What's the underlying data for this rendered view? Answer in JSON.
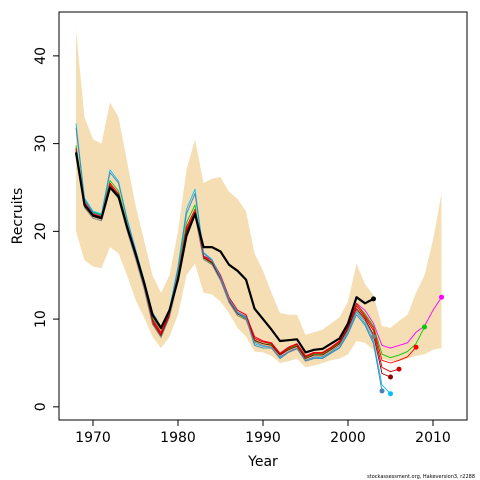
{
  "chart_data": {
    "type": "line",
    "xlabel": "Year",
    "ylabel": "Recruits",
    "xlim": [
      1966,
      2014
    ],
    "ylim": [
      -1.5,
      45
    ],
    "xticks": [
      1970,
      1980,
      1990,
      2000,
      2010
    ],
    "yticks": [
      0,
      10,
      20,
      30,
      40
    ],
    "grid": false,
    "footnote": "stockassessment.org, Hakeversion3, r2288",
    "colors": {
      "band": "#f5deb3",
      "main": "#000000",
      "peels": [
        "#ff00ff",
        "#00cd00",
        "#ff0000",
        "#cd0000",
        "#8b0000",
        "#00bfff",
        "#4682b4",
        "#808080",
        "#8b008b"
      ]
    },
    "years": [
      1968,
      1969,
      1970,
      1971,
      1972,
      1973,
      1974,
      1975,
      1976,
      1977,
      1978,
      1979,
      1980,
      1981,
      1982,
      1983,
      1984,
      1985,
      1986,
      1987,
      1988,
      1989,
      1990,
      1991,
      1992,
      1993,
      1994,
      1995,
      1996,
      1997,
      1998,
      1999,
      2000,
      2001,
      2002,
      2003,
      2004,
      2005,
      2006,
      2007,
      2008,
      2009,
      2010,
      2011
    ],
    "upper": [
      43,
      33,
      30.5,
      30,
      34.7,
      33,
      28,
      23,
      19,
      15,
      13,
      15,
      20,
      27,
      30.5,
      25.5,
      26,
      26.2,
      24.5,
      23.7,
      22.3,
      17.5,
      15.5,
      13,
      10.7,
      10.5,
      10.5,
      8.2,
      8.5,
      8.8,
      9.5,
      10.2,
      12,
      16.3,
      14,
      12.7,
      9.2,
      9,
      9.8,
      10.5,
      13,
      15,
      19,
      24.3
    ],
    "lower": [
      20,
      16.7,
      16,
      15.8,
      18.2,
      17.5,
      15,
      12.2,
      10.2,
      8,
      6.7,
      8,
      10.5,
      15,
      16.3,
      13,
      12.8,
      12,
      10.7,
      9,
      8,
      6.3,
      6.2,
      5.8,
      5,
      5.2,
      5.5,
      4.5,
      4.7,
      5,
      5.3,
      5.5,
      6,
      7.5,
      7.3,
      6.5,
      5.5,
      5.2,
      5.2,
      5.5,
      5.8,
      6,
      6.5,
      6.7
    ],
    "series": [
      {
        "values": [
          29,
          23,
          21.8,
          21.5,
          25,
          24,
          20.5,
          17.5,
          14.2,
          10.5,
          9,
          11,
          14.5,
          19.5,
          22,
          18.2,
          18.2,
          17.7,
          16.2,
          15.5,
          14.5,
          11.2,
          10,
          8.8,
          7.5,
          7.6,
          7.7,
          6.2,
          6.5,
          6.6,
          7.2,
          7.8,
          9.5,
          12.5,
          11.8,
          12.3
        ]
      },
      {
        "values": [
          29.5,
          23.3,
          22,
          21.7,
          25.5,
          24.3,
          20.7,
          17.4,
          14,
          10,
          8.5,
          10.8,
          15,
          20.5,
          22.5,
          17.2,
          16.7,
          15,
          12.5,
          11,
          10.5,
          8,
          7.5,
          7.3,
          6.1,
          6.8,
          7.2,
          5.8,
          6.2,
          6.2,
          6.8,
          7.5,
          9.2,
          11.8,
          11,
          9.5,
          7,
          6.7,
          7,
          7.3,
          8.5,
          9.2,
          11,
          12.5
        ]
      },
      {
        "values": [
          29.8,
          23.5,
          22.2,
          21.9,
          25.8,
          24.6,
          20.9,
          17.5,
          14.1,
          10.2,
          8.8,
          11,
          15.2,
          21,
          23,
          17,
          16.3,
          14.5,
          12,
          10.6,
          10,
          7.5,
          7.2,
          7.1,
          6,
          6.6,
          7,
          5.6,
          6,
          6,
          6.6,
          7.3,
          9,
          11.7,
          10.6,
          9.2,
          6,
          5.6,
          5.9,
          6.3,
          7.2,
          9.1
        ]
      },
      {
        "values": [
          29.5,
          23.3,
          22,
          21.7,
          25.5,
          24.3,
          20.7,
          17.4,
          14,
          10,
          8.5,
          10.8,
          15,
          20.5,
          22.5,
          17.2,
          16.7,
          15,
          12.5,
          11,
          10.5,
          8,
          7.5,
          7.3,
          6.1,
          6.8,
          7.2,
          5.8,
          6.2,
          6.2,
          6.8,
          7.5,
          9.2,
          11.8,
          10.4,
          9,
          5.3,
          5.0,
          5.3,
          5.7,
          6.8
        ]
      },
      {
        "values": [
          29.3,
          23.1,
          21.9,
          21.6,
          25.3,
          24.1,
          20.5,
          17.3,
          13.9,
          9.8,
          8.3,
          10.6,
          14.8,
          20.2,
          22.2,
          17.1,
          16.5,
          14.8,
          12.3,
          10.8,
          10.3,
          7.8,
          7.4,
          7.2,
          6,
          6.7,
          7.1,
          5.7,
          6.1,
          6.1,
          6.7,
          7.4,
          9.1,
          11.5,
          10.2,
          8.7,
          4.5,
          4.0,
          4.3
        ]
      },
      {
        "values": [
          29.1,
          22.9,
          21.7,
          21.4,
          25.1,
          23.9,
          20.3,
          17.1,
          13.7,
          9.6,
          8.1,
          10.4,
          14.6,
          20,
          22,
          17,
          16.4,
          14.6,
          12.1,
          10.6,
          10.1,
          7.6,
          7.2,
          7,
          5.9,
          6.5,
          6.9,
          5.5,
          5.9,
          5.9,
          6.5,
          7.2,
          8.9,
          11.2,
          10,
          8.2,
          3.8,
          3.4
        ]
      },
      {
        "values": [
          32.3,
          23.8,
          22.3,
          22,
          27,
          25.7,
          21.5,
          18,
          14.5,
          10.8,
          9.1,
          11.2,
          16,
          22.5,
          24.8,
          17.6,
          16.8,
          14.8,
          12.3,
          10.8,
          10.2,
          7.2,
          6.9,
          6.8,
          5.6,
          6.3,
          6.7,
          5.3,
          5.6,
          5.6,
          6.2,
          6.8,
          8.5,
          10.8,
          9.5,
          7.5,
          2.5,
          1.5
        ]
      },
      {
        "values": [
          31.8,
          23.6,
          22.1,
          21.8,
          26.7,
          25.5,
          21.3,
          17.8,
          14.3,
          10.6,
          8.9,
          11,
          15.7,
          22,
          24.3,
          17.5,
          16.7,
          14.7,
          12.2,
          10.7,
          10.1,
          7,
          6.7,
          6.7,
          5.5,
          6.2,
          6.6,
          5.2,
          5.5,
          5.5,
          6.1,
          6.7,
          8.3,
          10.5,
          9.3,
          7.2,
          1.8
        ]
      },
      {
        "values": [
          28.8,
          22.7,
          21.5,
          21.2,
          24.9,
          23.7,
          20.1,
          16.9,
          13.5,
          9.4,
          7.9,
          10.2,
          14.4,
          19.8,
          21.8,
          16.8,
          16.2,
          14.4,
          11.9,
          10.4,
          9.9,
          7.4,
          7,
          6.8,
          5.7,
          6.3,
          6.7,
          5.3,
          5.7,
          5.7,
          6.3,
          7,
          8.7,
          11,
          9.8,
          8
        ]
      }
    ]
  }
}
